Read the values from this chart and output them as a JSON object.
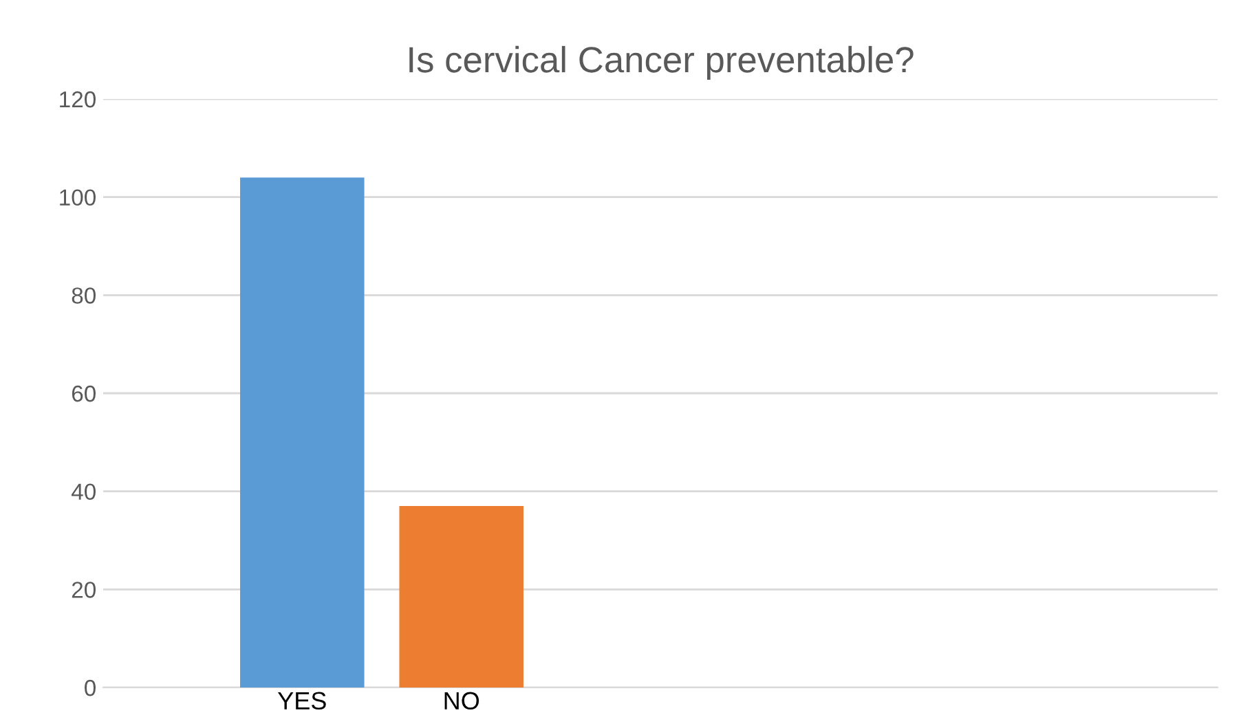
{
  "chart_data": {
    "type": "bar",
    "title": "Is cervical Cancer preventable?",
    "categories": [
      "YES",
      "NO",
      null,
      null,
      null,
      null
    ],
    "values": [
      104,
      37,
      null,
      null,
      null,
      null
    ],
    "colors": [
      "#5b9bd5",
      "#ed7d31",
      "#5b9bd5",
      "#5b9bd5",
      "#5b9bd5",
      "#5b9bd5"
    ],
    "ylim": [
      0,
      120
    ],
    "yticks": [
      0,
      20,
      40,
      60,
      80,
      100,
      120
    ],
    "grid": "y",
    "legend": false
  }
}
